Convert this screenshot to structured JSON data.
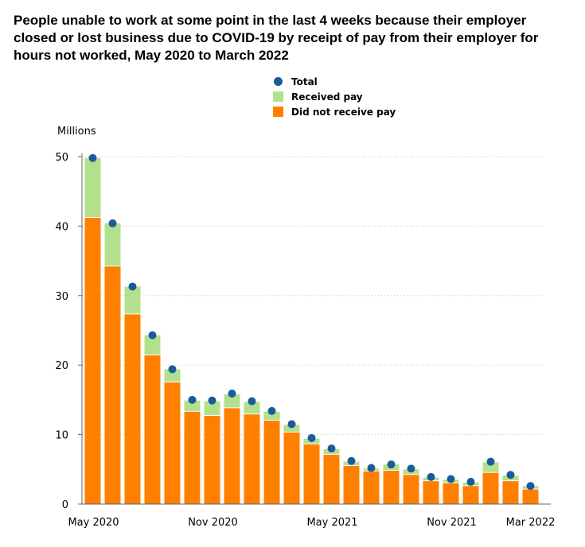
{
  "chart_data": {
    "type": "bar",
    "stacked": true,
    "title": "People unable to work at some point in the last 4 weeks because their employer closed or lost business due to COVID-19 by receipt of pay from their employer for hours not worked, May 2020 to March 2022",
    "ylabel": "Millions",
    "ylim": [
      0,
      50
    ],
    "yticks": [
      0,
      10,
      20,
      30,
      40,
      50
    ],
    "grid": true,
    "legend_position": "top-center",
    "categories": [
      "May 2020",
      "Jun 2020",
      "Jul 2020",
      "Aug 2020",
      "Sep 2020",
      "Oct 2020",
      "Nov 2020",
      "Dec 2020",
      "Jan 2021",
      "Feb 2021",
      "Mar 2021",
      "Apr 2021",
      "May 2021",
      "Jun 2021",
      "Jul 2021",
      "Aug 2021",
      "Sep 2021",
      "Oct 2021",
      "Nov 2021",
      "Dec 2021",
      "Jan 2022",
      "Feb 2022",
      "Mar 2022"
    ],
    "x_tick_labels": [
      "May 2020",
      "",
      "",
      "",
      "",
      "",
      "Nov 2020",
      "",
      "",
      "",
      "",
      "",
      "May 2021",
      "",
      "",
      "",
      "",
      "",
      "Nov 2021",
      "",
      "",
      "",
      "Mar 2022"
    ],
    "series": [
      {
        "name": "Did not receive pay",
        "color": "#ff8000",
        "values": [
          41.2,
          34.2,
          27.3,
          21.4,
          17.5,
          13.3,
          12.7,
          13.8,
          12.9,
          12.0,
          10.3,
          8.6,
          7.1,
          5.5,
          4.7,
          4.8,
          4.2,
          3.3,
          3.0,
          2.6,
          4.5,
          3.3,
          2.1
        ]
      },
      {
        "name": "Received pay",
        "color": "#b3e08c",
        "values": [
          8.6,
          6.2,
          4.0,
          2.9,
          1.9,
          1.6,
          2.1,
          2.0,
          1.8,
          1.3,
          1.1,
          0.8,
          0.8,
          0.6,
          0.4,
          0.9,
          0.8,
          0.5,
          0.5,
          0.5,
          1.5,
          0.8,
          0.5
        ]
      },
      {
        "name": "Total",
        "color": "#1c5a9e",
        "marker": "dot",
        "values": [
          49.8,
          40.4,
          31.3,
          24.3,
          19.4,
          15.0,
          14.9,
          15.9,
          14.8,
          13.4,
          11.5,
          9.5,
          8.0,
          6.2,
          5.2,
          5.7,
          5.1,
          3.9,
          3.6,
          3.2,
          6.1,
          4.2,
          2.6
        ]
      }
    ]
  }
}
